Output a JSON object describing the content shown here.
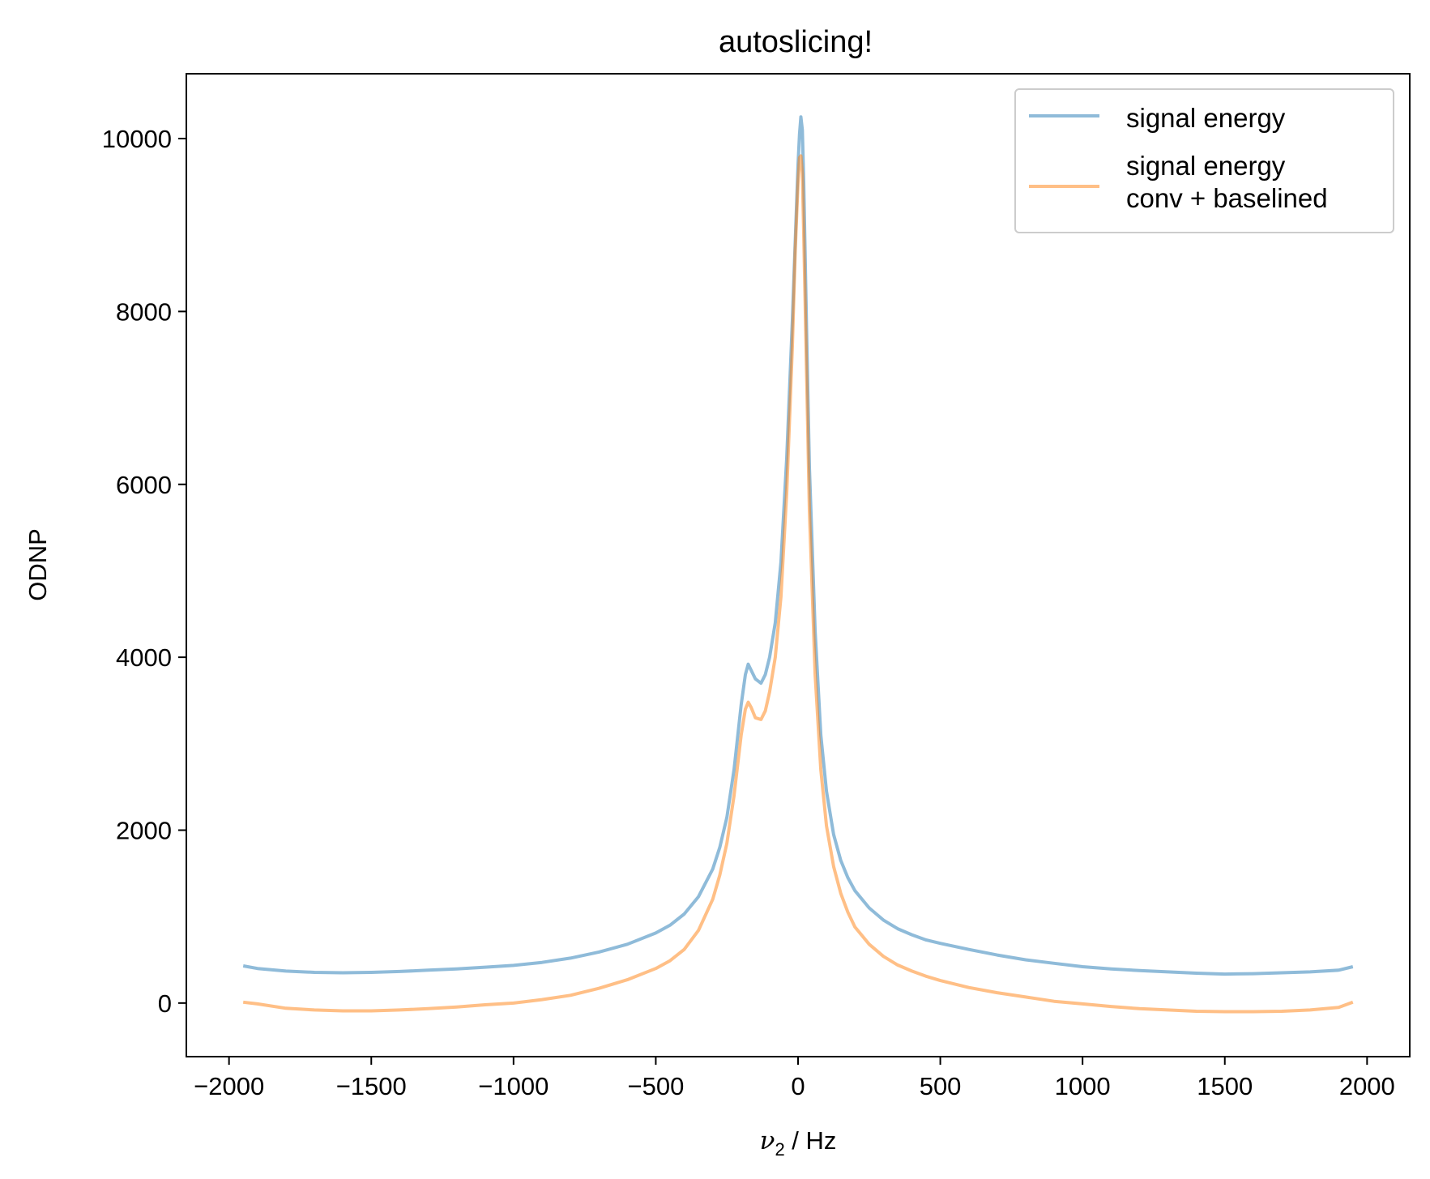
{
  "chart_data": {
    "type": "line",
    "title": "autoslicing!",
    "xlabel": {
      "symbol": "ν",
      "subscript": "2",
      "unit": " / Hz"
    },
    "ylabel": "ODNP",
    "xlim": [
      -2150,
      2150
    ],
    "ylim": [
      -620,
      10750
    ],
    "grid": false,
    "legend_position": "top-right",
    "x_ticks": [
      -2000,
      -1500,
      -1000,
      -500,
      0,
      500,
      1000,
      1500,
      2000
    ],
    "x_tick_labels": [
      "−2000",
      "−1500",
      "−1000",
      "−500",
      "0",
      "500",
      "1000",
      "1500",
      "2000"
    ],
    "y_ticks": [
      0,
      2000,
      4000,
      6000,
      8000,
      10000
    ],
    "y_tick_labels": [
      "0",
      "2000",
      "4000",
      "6000",
      "8000",
      "10000"
    ],
    "x": [
      -1950,
      -1900,
      -1800,
      -1700,
      -1600,
      -1500,
      -1400,
      -1300,
      -1200,
      -1100,
      -1000,
      -900,
      -800,
      -700,
      -600,
      -500,
      -450,
      -400,
      -350,
      -300,
      -275,
      -250,
      -225,
      -200,
      -185,
      -175,
      -165,
      -150,
      -130,
      -115,
      -100,
      -80,
      -60,
      -40,
      -20,
      -10,
      0,
      5,
      10,
      15,
      20,
      30,
      40,
      60,
      80,
      100,
      125,
      150,
      175,
      200,
      250,
      300,
      350,
      400,
      450,
      500,
      600,
      700,
      800,
      900,
      1000,
      1100,
      1200,
      1300,
      1400,
      1500,
      1600,
      1700,
      1800,
      1900,
      1950
    ],
    "series": [
      {
        "name": "signal energy",
        "color": "#1f77b4",
        "opacity": 0.5,
        "values": [
          430,
          400,
          370,
          355,
          350,
          355,
          365,
          380,
          395,
          415,
          435,
          470,
          520,
          590,
          680,
          810,
          900,
          1030,
          1230,
          1550,
          1800,
          2150,
          2700,
          3450,
          3800,
          3920,
          3850,
          3750,
          3700,
          3800,
          4000,
          4400,
          5100,
          6300,
          7900,
          8800,
          9700,
          10050,
          10250,
          10100,
          9500,
          7800,
          6200,
          4300,
          3100,
          2450,
          1950,
          1650,
          1450,
          1300,
          1100,
          960,
          860,
          790,
          730,
          690,
          620,
          555,
          500,
          460,
          420,
          395,
          375,
          360,
          345,
          335,
          340,
          350,
          360,
          380,
          420
        ]
      },
      {
        "name": "signal energy\nconv + baselined",
        "color": "#ff7f0e",
        "opacity": 0.5,
        "values": [
          10,
          -10,
          -60,
          -80,
          -90,
          -90,
          -80,
          -65,
          -45,
          -20,
          0,
          40,
          90,
          170,
          270,
          400,
          490,
          620,
          840,
          1200,
          1480,
          1850,
          2400,
          3100,
          3400,
          3480,
          3420,
          3300,
          3280,
          3380,
          3600,
          4000,
          4700,
          5900,
          7600,
          8700,
          9500,
          9780,
          9800,
          9600,
          8900,
          7300,
          5700,
          3800,
          2700,
          2050,
          1580,
          1270,
          1050,
          880,
          680,
          540,
          440,
          370,
          310,
          260,
          180,
          120,
          70,
          20,
          -10,
          -40,
          -65,
          -80,
          -95,
          -100,
          -100,
          -95,
          -80,
          -50,
          10
        ]
      }
    ]
  }
}
